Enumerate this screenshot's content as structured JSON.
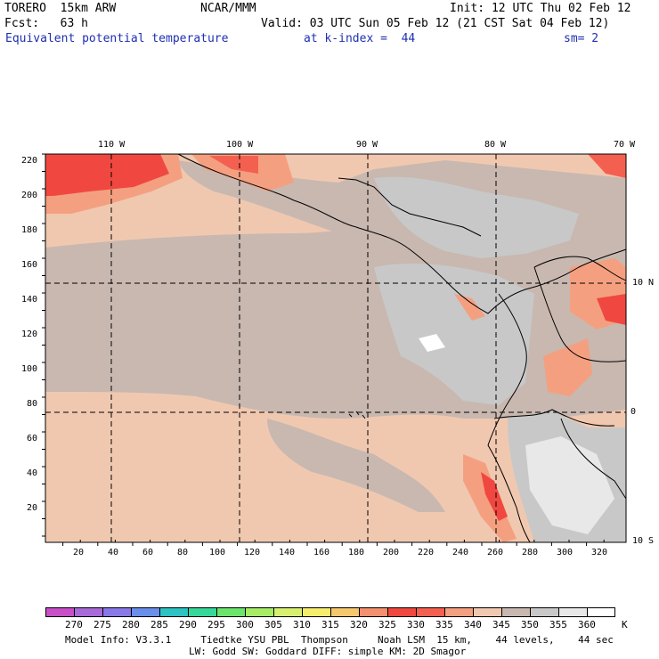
{
  "header": {
    "model": "TORERO  15km ARW",
    "center": "NCAR/MMM",
    "init": "Init: 12 UTC Thu 02 Feb 12",
    "fcst": "Fcst:   63 h",
    "valid": "Valid: 03 UTC Sun 05 Feb 12 (21 CST Sat 04 Feb 12)",
    "field": "Equivalent potential temperature",
    "level": "at k-index =  44",
    "smooth": "sm= 2"
  },
  "axes": {
    "x_ticks": [
      "20",
      "40",
      "60",
      "80",
      "100",
      "120",
      "140",
      "160",
      "180",
      "200",
      "220",
      "240",
      "260",
      "280",
      "300",
      "320"
    ],
    "y_ticks": [
      "220",
      "200",
      "180",
      "160",
      "140",
      "120",
      "100",
      "80",
      "60",
      "40",
      "20"
    ],
    "lon_labels": [
      "110 W",
      "100 W",
      "90 W",
      "80 W",
      "70 W"
    ],
    "lat_labels": [
      "10 N",
      "0",
      "10 S"
    ]
  },
  "colorbar": {
    "unit": "K",
    "labels": [
      "270",
      "275",
      "280",
      "285",
      "290",
      "295",
      "300",
      "305",
      "310",
      "315",
      "320",
      "325",
      "330",
      "335",
      "340",
      "345",
      "350",
      "355",
      "360"
    ],
    "colors": [
      "#c84fc8",
      "#a86ad8",
      "#8878e8",
      "#6a8fea",
      "#2ec2c2",
      "#36d89a",
      "#6ce46c",
      "#a6ec66",
      "#d8f070",
      "#f6ec6e",
      "#f6c86e",
      "#f4906e",
      "#f04840",
      "#f46050",
      "#f4a080",
      "#f0c8b0",
      "#c8b8b0",
      "#c8c8c8",
      "#e8e8e8",
      "#ffffff"
    ]
  },
  "footer": {
    "line1": "Model Info: V3.3.1     Tiedtke YSU PBL  Thompson     Noah LSM  15 km,    44 levels,    44 sec",
    "line2": "LW: Godd SW: Goddard DIFF: simple KM: 2D Smagor"
  }
}
